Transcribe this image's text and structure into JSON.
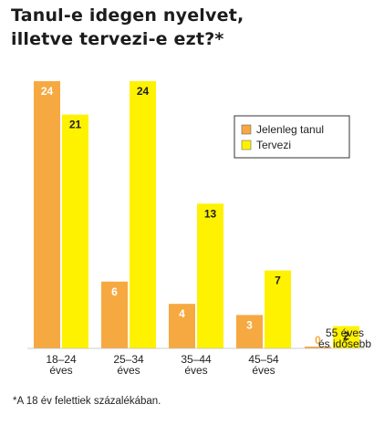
{
  "chart_data": {
    "type": "bar",
    "title_lines": [
      "Tanul-e idegen nyelvet,",
      "illetve tervezi-e ezt?*"
    ],
    "categories": [
      [
        "18–24",
        "éves"
      ],
      [
        "25–34",
        "éves"
      ],
      [
        "35–44",
        "éves"
      ],
      [
        "45–54",
        "éves"
      ],
      [
        "55 éves",
        "és idősebb"
      ]
    ],
    "series": [
      {
        "name": "Jelenleg tanul",
        "color": "#F7A941",
        "values": [
          24,
          6,
          4,
          3,
          0
        ]
      },
      {
        "name": "Tervezi",
        "color": "#FFF200",
        "values": [
          21,
          24,
          13,
          7,
          2
        ]
      }
    ],
    "ylim": [
      0,
      24
    ],
    "legend_position": "right",
    "grid": false,
    "footnote": "*A 18 év felettiek százalékában."
  }
}
